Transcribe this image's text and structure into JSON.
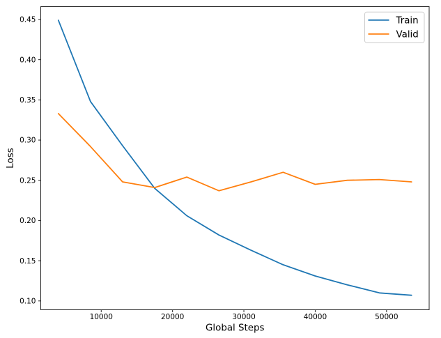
{
  "figure": {
    "background": "#ffffff",
    "accent_colors": {
      "train": "#1f77b4",
      "valid": "#ff7f0e",
      "legend_border": "#cccccc",
      "spine": "#262626"
    }
  },
  "chart_data": {
    "type": "line",
    "title": "",
    "xlabel": "Global Steps",
    "ylabel": "Loss",
    "x": [
      4000,
      8500,
      13000,
      17500,
      22000,
      26500,
      31000,
      35500,
      40000,
      44500,
      49000,
      53500
    ],
    "series": [
      {
        "name": "Train",
        "color": "#1f77b4",
        "values": [
          0.449,
          0.348,
          0.293,
          0.24,
          0.206,
          0.182,
          0.163,
          0.145,
          0.131,
          0.12,
          0.11,
          0.107
        ]
      },
      {
        "name": "Valid",
        "color": "#ff7f0e",
        "values": [
          0.333,
          0.292,
          0.248,
          0.241,
          0.254,
          0.237,
          0.248,
          0.26,
          0.245,
          0.25,
          0.251,
          0.248
        ]
      }
    ],
    "xticks": [
      10000,
      20000,
      30000,
      40000,
      50000
    ],
    "xtick_labels": [
      "10000",
      "20000",
      "30000",
      "40000",
      "50000"
    ],
    "yticks": [
      0.1,
      0.15,
      0.2,
      0.25,
      0.3,
      0.35,
      0.4,
      0.45
    ],
    "ytick_labels": [
      "0.10",
      "0.15",
      "0.20",
      "0.25",
      "0.30",
      "0.35",
      "0.40",
      "0.45"
    ],
    "xlim": [
      1525,
      55975
    ],
    "ylim": [
      0.089,
      0.466
    ],
    "grid": false,
    "legend": {
      "position": "upper right",
      "entries": [
        "Train",
        "Valid"
      ]
    }
  }
}
